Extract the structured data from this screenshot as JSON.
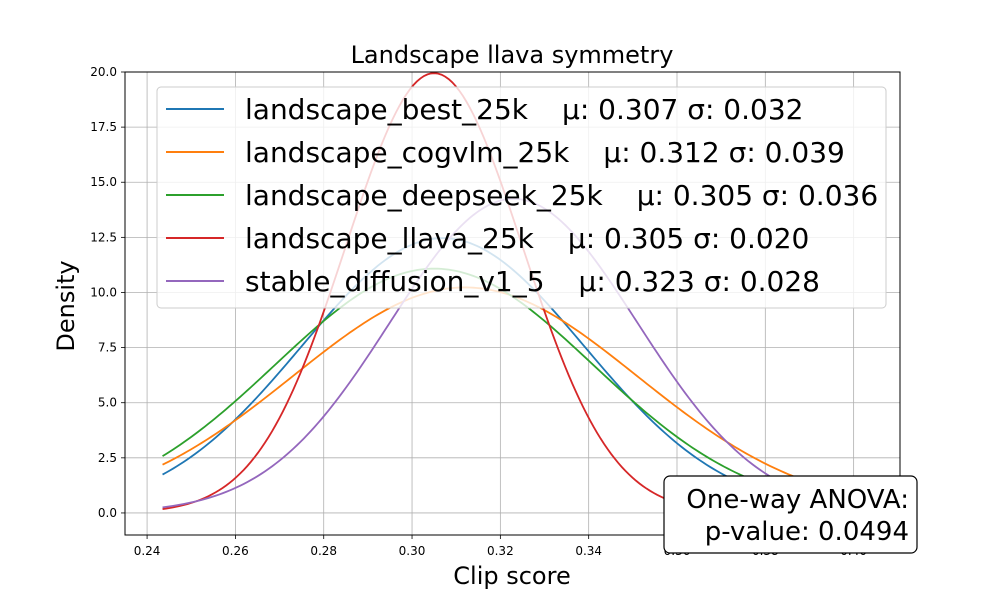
{
  "chart_data": {
    "type": "line",
    "title": "Landscape llava symmetry",
    "xlabel": "Clip score",
    "ylabel": "Density",
    "xlim": [
      0.235,
      0.4105
    ],
    "ylim": [
      -1.0,
      20.0
    ],
    "xticks": [
      0.24,
      0.26,
      0.28,
      0.3,
      0.32,
      0.34,
      0.36,
      0.38,
      0.4
    ],
    "xtick_labels": [
      "0.24",
      "0.26",
      "0.28",
      "0.30",
      "0.32",
      "0.34",
      "0.36",
      "0.38",
      "0.40"
    ],
    "yticks": [
      0.0,
      2.5,
      5.0,
      7.5,
      10.0,
      12.5,
      15.0,
      17.5,
      20.0
    ],
    "ytick_labels": [
      "0.0",
      "2.5",
      "5.0",
      "7.5",
      "10.0",
      "12.5",
      "15.0",
      "17.5",
      "20.0"
    ],
    "grid": true,
    "legend_position": "top",
    "x_range_plotted": [
      0.2435,
      0.4035
    ],
    "series": [
      {
        "name": "landscape_best_25k",
        "stats": "μ: 0.307 σ: 0.032",
        "mean": 0.307,
        "std": 0.032,
        "color": "#1f77b4"
      },
      {
        "name": "landscape_cogvlm_25k",
        "stats": "μ: 0.312 σ: 0.039",
        "mean": 0.312,
        "std": 0.039,
        "color": "#ff7f0e"
      },
      {
        "name": "landscape_deepseek_25k",
        "stats": "μ: 0.305 σ: 0.036",
        "mean": 0.305,
        "std": 0.036,
        "color": "#2ca02c"
      },
      {
        "name": "landscape_llava_25k",
        "stats": "μ: 0.305 σ: 0.020",
        "mean": 0.305,
        "std": 0.02,
        "color": "#d62728"
      },
      {
        "name": "stable_diffusion_v1_5",
        "stats": "μ: 0.323 σ: 0.028",
        "mean": 0.323,
        "std": 0.028,
        "color": "#9467bd"
      }
    ],
    "annotation": {
      "line1": "One-way ANOVA:",
      "line2": "p-value: 0.0494"
    }
  }
}
